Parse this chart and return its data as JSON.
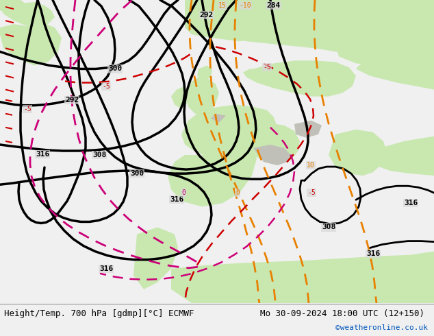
{
  "title_left": "Height/Temp. 700 hPa [gdmp][°C] ECMWF",
  "title_right": "Mo 30-09-2024 18:00 UTC (12+150)",
  "copyright": "©weatheronline.co.uk",
  "ocean_color": "#d8d8d8",
  "land_color": "#c8e8b0",
  "land_color2": "#b8dca0",
  "grey_land": "#c0c0b8",
  "bottom_bg": "#f0f0f0",
  "bottom_line": "#888888"
}
